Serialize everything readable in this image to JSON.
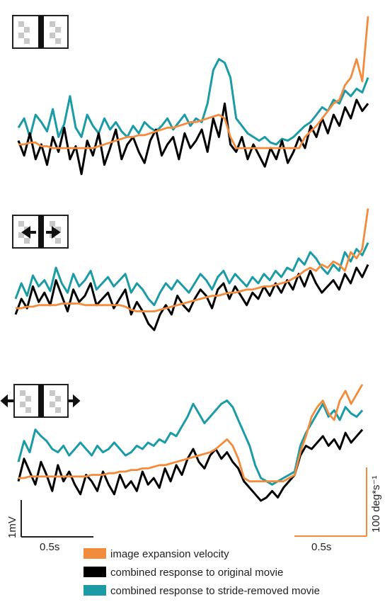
{
  "colors": {
    "expansion": "#f28c3c",
    "original": "#000000",
    "stride_removed": "#1a9ba5"
  },
  "scalebars": {
    "voltage_label": "1mV",
    "time_label_left": "0.5s",
    "time_label_right": "0.5s",
    "velocity_label": "100 deg*s⁻¹"
  },
  "legend": [
    {
      "label": "image expansion velocity",
      "color": "#f28c3c"
    },
    {
      "label": "combined response to original movie",
      "color": "#000000"
    },
    {
      "label": "combined response to stride-removed movie",
      "color": "#1a9ba5"
    }
  ],
  "chart_data": [
    {
      "type": "line",
      "panel": "stationary-checkerboard",
      "icon": "stimulus-icon-static",
      "series": [
        {
          "key": "stride_removed",
          "values": [
            0.35,
            0.4,
            0.3,
            0.42,
            0.38,
            0.33,
            0.45,
            0.3,
            0.37,
            0.52,
            0.35,
            0.3,
            0.42,
            0.36,
            0.32,
            0.4,
            0.34,
            0.38,
            0.33,
            0.3,
            0.36,
            0.32,
            0.38,
            0.35,
            0.33,
            0.36,
            0.4,
            0.34,
            0.38,
            0.42,
            0.36,
            0.4,
            0.38,
            0.48,
            0.66,
            0.72,
            0.7,
            0.62,
            0.4,
            0.36,
            0.32,
            0.3,
            0.28,
            0.3,
            0.27,
            0.26,
            0.29,
            0.28,
            0.3,
            0.33,
            0.36,
            0.38,
            0.42,
            0.46,
            0.44,
            0.5,
            0.48,
            0.55,
            0.52,
            0.56,
            0.54,
            0.62
          ]
        },
        {
          "key": "original",
          "values": [
            0.28,
            0.2,
            0.32,
            0.18,
            0.26,
            0.15,
            0.3,
            0.22,
            0.35,
            0.18,
            0.25,
            0.1,
            0.28,
            0.2,
            0.32,
            0.15,
            0.24,
            0.34,
            0.18,
            0.26,
            0.3,
            0.22,
            0.16,
            0.28,
            0.34,
            0.2,
            0.26,
            0.3,
            0.18,
            0.32,
            0.24,
            0.28,
            0.34,
            0.22,
            0.4,
            0.3,
            0.48,
            0.26,
            0.22,
            0.3,
            0.18,
            0.26,
            0.2,
            0.14,
            0.24,
            0.18,
            0.28,
            0.16,
            0.22,
            0.3,
            0.24,
            0.36,
            0.3,
            0.4,
            0.32,
            0.42,
            0.36,
            0.46,
            0.4,
            0.5,
            0.44,
            0.48
          ]
        },
        {
          "key": "expansion",
          "values": [
            0.26,
            0.26,
            0.27,
            0.27,
            0.25,
            0.25,
            0.24,
            0.24,
            0.24,
            0.24,
            0.24,
            0.24,
            0.24,
            0.24,
            0.25,
            0.26,
            0.27,
            0.28,
            0.29,
            0.3,
            0.3,
            0.31,
            0.31,
            0.32,
            0.33,
            0.34,
            0.35,
            0.35,
            0.36,
            0.37,
            0.38,
            0.38,
            0.39,
            0.4,
            0.41,
            0.42,
            0.4,
            0.3,
            0.24,
            0.24,
            0.24,
            0.24,
            0.24,
            0.24,
            0.24,
            0.24,
            0.24,
            0.24,
            0.24,
            0.24,
            0.3,
            0.33,
            0.36,
            0.4,
            0.44,
            0.48,
            0.5,
            0.58,
            0.62,
            0.72,
            0.6,
            0.95
          ]
        }
      ]
    },
    {
      "type": "line",
      "panel": "inward-motion-checkerboard",
      "icon": "stimulus-icon-inward-arrows",
      "series": [
        {
          "key": "stride_removed",
          "values": [
            0.4,
            0.5,
            0.42,
            0.55,
            0.48,
            0.52,
            0.45,
            0.6,
            0.5,
            0.44,
            0.56,
            0.48,
            0.52,
            0.58,
            0.46,
            0.5,
            0.54,
            0.48,
            0.52,
            0.56,
            0.44,
            0.5,
            0.46,
            0.4,
            0.36,
            0.44,
            0.5,
            0.46,
            0.52,
            0.48,
            0.44,
            0.5,
            0.56,
            0.52,
            0.46,
            0.54,
            0.58,
            0.5,
            0.56,
            0.52,
            0.48,
            0.54,
            0.5,
            0.56,
            0.52,
            0.58,
            0.54,
            0.6,
            0.58,
            0.66,
            0.62,
            0.7,
            0.66,
            0.6,
            0.56,
            0.62,
            0.58,
            0.7,
            0.64,
            0.72,
            0.68,
            0.76
          ]
        },
        {
          "key": "original",
          "values": [
            0.3,
            0.4,
            0.34,
            0.48,
            0.38,
            0.44,
            0.36,
            0.52,
            0.42,
            0.32,
            0.46,
            0.38,
            0.42,
            0.5,
            0.36,
            0.4,
            0.44,
            0.34,
            0.4,
            0.46,
            0.3,
            0.38,
            0.32,
            0.24,
            0.2,
            0.3,
            0.36,
            0.3,
            0.42,
            0.36,
            0.32,
            0.4,
            0.46,
            0.42,
            0.34,
            0.46,
            0.5,
            0.4,
            0.48,
            0.42,
            0.36,
            0.44,
            0.4,
            0.48,
            0.42,
            0.5,
            0.44,
            0.52,
            0.46,
            0.56,
            0.48,
            0.58,
            0.5,
            0.44,
            0.48,
            0.52,
            0.46,
            0.56,
            0.5,
            0.6,
            0.54,
            0.62
          ]
        },
        {
          "key": "expansion",
          "values": [
            0.34,
            0.34,
            0.35,
            0.35,
            0.36,
            0.36,
            0.36,
            0.36,
            0.37,
            0.37,
            0.37,
            0.37,
            0.36,
            0.36,
            0.36,
            0.36,
            0.36,
            0.36,
            0.36,
            0.35,
            0.33,
            0.32,
            0.32,
            0.32,
            0.32,
            0.33,
            0.34,
            0.35,
            0.36,
            0.37,
            0.38,
            0.39,
            0.4,
            0.41,
            0.42,
            0.42,
            0.43,
            0.44,
            0.44,
            0.45,
            0.46,
            0.46,
            0.47,
            0.48,
            0.48,
            0.49,
            0.5,
            0.51,
            0.53,
            0.55,
            0.58,
            0.6,
            0.58,
            0.62,
            0.6,
            0.64,
            0.62,
            0.58,
            0.7,
            0.66,
            0.72,
            0.98
          ]
        }
      ]
    },
    {
      "type": "line",
      "panel": "outward-motion-checkerboard",
      "icon": "stimulus-icon-outward-arrows",
      "series": [
        {
          "key": "stride_removed",
          "values": [
            0.42,
            0.55,
            0.48,
            0.62,
            0.58,
            0.55,
            0.5,
            0.48,
            0.52,
            0.46,
            0.5,
            0.54,
            0.5,
            0.46,
            0.52,
            0.48,
            0.5,
            0.54,
            0.5,
            0.46,
            0.48,
            0.52,
            0.5,
            0.54,
            0.52,
            0.56,
            0.54,
            0.6,
            0.58,
            0.64,
            0.7,
            0.78,
            0.72,
            0.66,
            0.7,
            0.74,
            0.78,
            0.8,
            0.76,
            0.68,
            0.6,
            0.52,
            0.4,
            0.32,
            0.3,
            0.28,
            0.3,
            0.32,
            0.34,
            0.36,
            0.52,
            0.6,
            0.66,
            0.72,
            0.78,
            0.7,
            0.74,
            0.68,
            0.76,
            0.72,
            0.7,
            0.74
          ]
        },
        {
          "key": "original",
          "values": [
            0.3,
            0.44,
            0.36,
            0.28,
            0.42,
            0.34,
            0.24,
            0.4,
            0.3,
            0.36,
            0.28,
            0.22,
            0.34,
            0.3,
            0.24,
            0.36,
            0.28,
            0.22,
            0.34,
            0.26,
            0.3,
            0.24,
            0.36,
            0.28,
            0.32,
            0.26,
            0.38,
            0.3,
            0.4,
            0.34,
            0.44,
            0.5,
            0.42,
            0.38,
            0.46,
            0.5,
            0.44,
            0.48,
            0.42,
            0.38,
            0.3,
            0.26,
            0.22,
            0.18,
            0.2,
            0.24,
            0.2,
            0.26,
            0.3,
            0.34,
            0.46,
            0.52,
            0.5,
            0.54,
            0.58,
            0.52,
            0.56,
            0.5,
            0.6,
            0.54,
            0.58,
            0.62
          ]
        },
        {
          "key": "expansion",
          "values": [
            0.32,
            0.32,
            0.33,
            0.33,
            0.33,
            0.33,
            0.33,
            0.33,
            0.33,
            0.33,
            0.33,
            0.33,
            0.33,
            0.34,
            0.34,
            0.34,
            0.35,
            0.35,
            0.36,
            0.36,
            0.37,
            0.37,
            0.38,
            0.38,
            0.39,
            0.4,
            0.4,
            0.41,
            0.42,
            0.43,
            0.44,
            0.45,
            0.46,
            0.47,
            0.48,
            0.5,
            0.53,
            0.56,
            0.52,
            0.44,
            0.32,
            0.3,
            0.3,
            0.3,
            0.3,
            0.3,
            0.3,
            0.3,
            0.32,
            0.34,
            0.48,
            0.58,
            0.7,
            0.76,
            0.8,
            0.72,
            0.68,
            0.8,
            0.86,
            0.78,
            0.84,
            0.9
          ]
        }
      ]
    }
  ]
}
